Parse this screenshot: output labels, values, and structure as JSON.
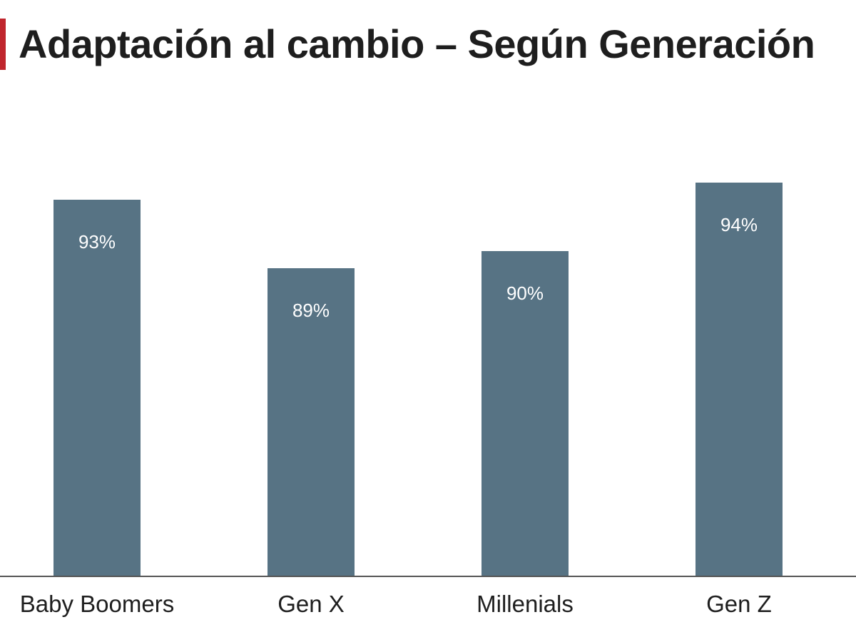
{
  "chart_data": {
    "type": "bar",
    "title": "Adaptación al cambio – Según Generación",
    "categories": [
      "Baby Boomers",
      "Gen X",
      "Millenials",
      "Gen Z"
    ],
    "values": [
      93,
      89,
      90,
      94
    ],
    "value_labels": [
      "93%",
      "89%",
      "90%",
      "94%"
    ],
    "unit": "%",
    "ylim": [
      71,
      95
    ],
    "grid": false,
    "legend": "none",
    "colors": {
      "bar": "#577384",
      "bar_label": "#ffffff",
      "axis": "#555555",
      "title_accent": "#c0262d",
      "text": "#1e1e1e"
    }
  }
}
